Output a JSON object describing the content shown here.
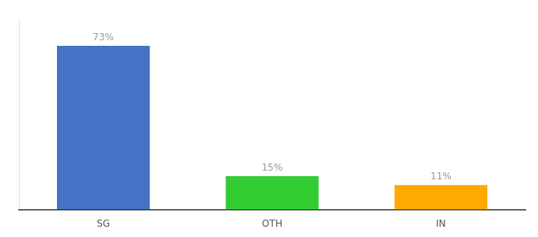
{
  "chart_data": {
    "type": "bar",
    "categories": [
      "SG",
      "OTH",
      "IN"
    ],
    "values": [
      73,
      15,
      11
    ],
    "value_labels": [
      "73%",
      "15%",
      "11%"
    ],
    "colors": [
      "#4472c4",
      "#33cc33",
      "#ffaa00"
    ],
    "ylim": [
      0,
      85
    ],
    "grid": false,
    "data_labels": true,
    "tick_labels": "x"
  }
}
